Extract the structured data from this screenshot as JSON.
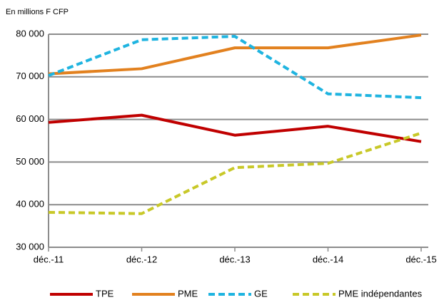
{
  "chart_data": {
    "type": "line",
    "subtitle": "En millions F CFP",
    "categories": [
      "déc.-11",
      "déc.-12",
      "déc.-13",
      "déc.-14",
      "déc.-15"
    ],
    "series": [
      {
        "name": "TPE",
        "color": "#c00000",
        "dashed": false,
        "values": [
          59300,
          61000,
          56300,
          58400,
          54800
        ]
      },
      {
        "name": "PME",
        "color": "#e2811f",
        "dashed": false,
        "values": [
          70700,
          71900,
          76800,
          76800,
          79800
        ]
      },
      {
        "name": "GE",
        "color": "#1fb4e0",
        "dashed": true,
        "values": [
          70300,
          78700,
          79500,
          66000,
          65100
        ]
      },
      {
        "name": "PME indépendantes",
        "color": "#c8c828",
        "dashed": true,
        "values": [
          38200,
          37900,
          48700,
          49700,
          56800
        ]
      }
    ],
    "ylim": [
      30000,
      80000
    ],
    "yticks": [
      {
        "value": 30000,
        "label": "30 000"
      },
      {
        "value": 40000,
        "label": "40 000"
      },
      {
        "value": 50000,
        "label": "50 000"
      },
      {
        "value": 60000,
        "label": "60 000"
      },
      {
        "value": 70000,
        "label": "70 000"
      },
      {
        "value": 80000,
        "label": "80 000"
      }
    ],
    "grid": true,
    "legend": "bottom"
  }
}
